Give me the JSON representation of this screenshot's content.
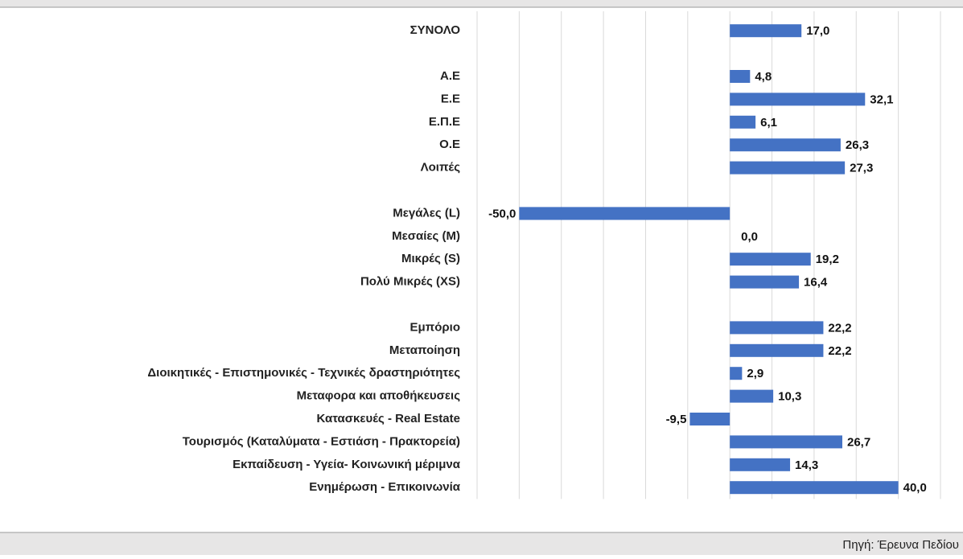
{
  "chart_data": {
    "type": "barh",
    "categories": [
      "ΣΥΝΟΛΟ",
      null,
      "Α.Ε",
      "Ε.Ε",
      "Ε.Π.Ε",
      "Ο.Ε",
      "Λοιπές",
      null,
      "Μεγάλες (L)",
      "Μεσαίες (M)",
      "Μικρές (S)",
      "Πολύ Μικρές (XS)",
      null,
      "Εμπόριο",
      "Μεταποίηση",
      "Διοικητικές - Επιστημονικές - Τεχνικές δραστηριότητες",
      "Μεταφορα και αποθήκευσεις",
      "Κατασκευές - Real Estate",
      "Τουρισμός (Καταλύματα - Εστιάση - Πρακτορεία)",
      "Εκπαίδευση - Υγεία- Κοινωνική μέριμνα",
      "Ενημέρωση - Επικοινωνία"
    ],
    "values": [
      17.0,
      null,
      4.8,
      32.1,
      6.1,
      26.3,
      27.3,
      null,
      -50.0,
      0.0,
      19.2,
      16.4,
      null,
      22.2,
      22.2,
      2.9,
      10.3,
      -9.5,
      26.7,
      14.3,
      40.0
    ],
    "value_labels": [
      "17,0",
      null,
      "4,8",
      "32,1",
      "6,1",
      "26,3",
      "27,3",
      null,
      "-50,0",
      "0,0",
      "19,2",
      "16,4",
      null,
      "22,2",
      "22,2",
      "2,9",
      "10,3",
      "-9,5",
      "26,7",
      "14,3",
      "40,0"
    ],
    "color": "#4472c4",
    "xlim": [
      -60,
      50
    ],
    "xticks": [
      -60,
      -50,
      -40,
      -30,
      -20,
      -10,
      0,
      10,
      20,
      30,
      40,
      50
    ],
    "grid": true,
    "source": "Πηγή: Έρευνα Πεδίου"
  }
}
